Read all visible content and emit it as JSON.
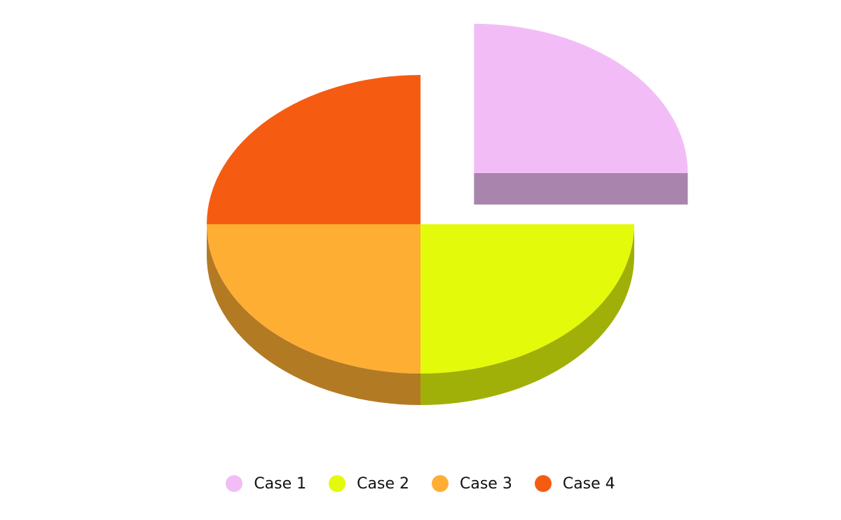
{
  "chart_data": {
    "type": "pie",
    "style": "3d",
    "exploded_slice": "Case 1",
    "categories": [
      "Case 1",
      "Case 2",
      "Case 3",
      "Case 4"
    ],
    "values": [
      25,
      25,
      25,
      25
    ],
    "colors": [
      "#f2bdf6",
      "#e3fa0a",
      "#ffae34",
      "#f55c11"
    ],
    "side_colors": [
      "#a984ac",
      "#a0b008",
      "#b37a24",
      "#ac4010"
    ],
    "legend_placement": "bottom-center"
  },
  "legend": {
    "items": [
      {
        "label": "Case 1",
        "color": "#f2bdf6"
      },
      {
        "label": "Case 2",
        "color": "#e3fa0a"
      },
      {
        "label": "Case 3",
        "color": "#ffae34"
      },
      {
        "label": "Case 4",
        "color": "#f55c11"
      }
    ]
  }
}
